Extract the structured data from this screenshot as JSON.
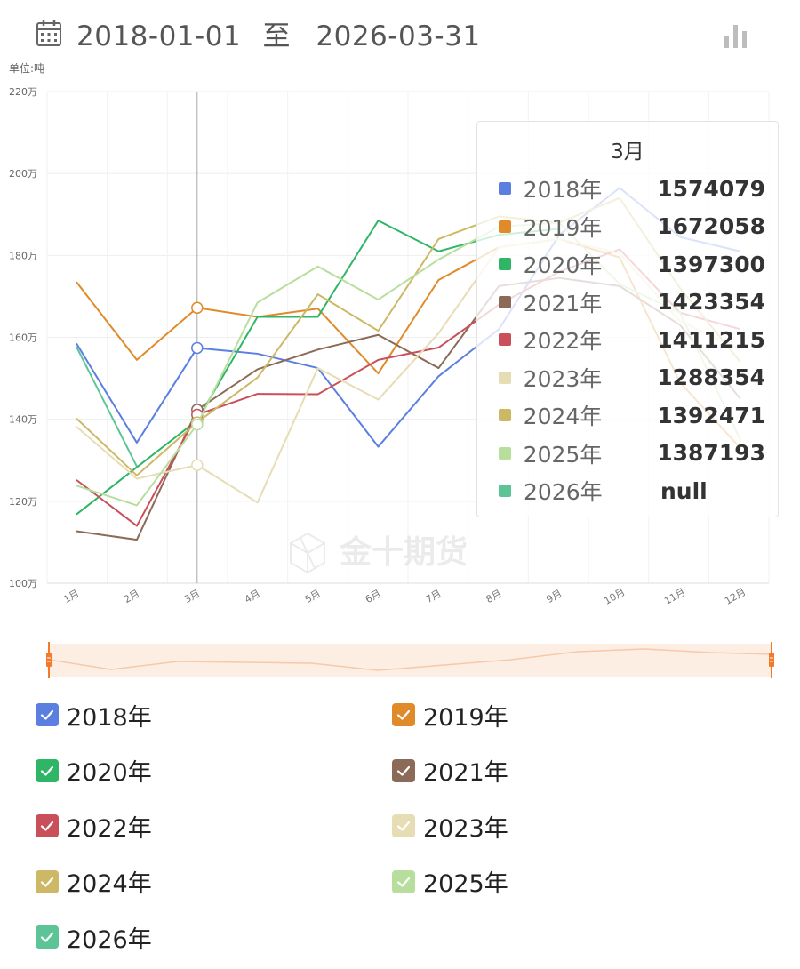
{
  "header": {
    "start_date": "2018-01-01",
    "separator": "至",
    "end_date": "2026-03-31"
  },
  "unit_label": "单位:吨",
  "chart_data": {
    "type": "line",
    "categories": [
      "1月",
      "2月",
      "3月",
      "4月",
      "5月",
      "6月",
      "7月",
      "8月",
      "9月",
      "10月",
      "11月",
      "12月"
    ],
    "y_tick_labels": [
      "100万",
      "120万",
      "140万",
      "160万",
      "180万",
      "200万",
      "220万"
    ],
    "ylim": [
      1000000,
      2200000
    ],
    "grid": true,
    "watermark": "金十期货",
    "series": [
      {
        "name": "2018年",
        "color": "#5b7fe0",
        "values": [
          1585000,
          1343000,
          1574079,
          1560000,
          1525000,
          1333000,
          1505000,
          1620000,
          1850000,
          1965000,
          1845000,
          1810000
        ]
      },
      {
        "name": "2019年",
        "color": "#e08a2a",
        "values": [
          1735000,
          1545000,
          1672058,
          1650000,
          1670000,
          1512000,
          1740000,
          1820000,
          1840000,
          1795000,
          1490000,
          1330000
        ]
      },
      {
        "name": "2020年",
        "color": "#2fb566",
        "values": [
          1168000,
          1283000,
          1397300,
          1650000,
          1650000,
          1885000,
          1810000,
          1850000,
          1865000,
          null,
          null,
          null
        ]
      },
      {
        "name": "2021年",
        "color": "#8c6a58",
        "values": [
          1127000,
          1106000,
          1423354,
          1522000,
          1570000,
          1606000,
          1525000,
          1725000,
          1745000,
          1725000,
          1630000,
          1450000
        ]
      },
      {
        "name": "2022年",
        "color": "#c9505a",
        "values": [
          1252000,
          1140000,
          1411215,
          1462000,
          1461000,
          1545000,
          1575000,
          1680000,
          1760000,
          1815000,
          1660000,
          1620000
        ]
      },
      {
        "name": "2023年",
        "color": "#e7ddb5",
        "values": [
          1382000,
          1255000,
          1288354,
          1197000,
          1525000,
          1448000,
          1610000,
          1820000,
          1840000,
          1805000,
          1640000,
          1570000
        ]
      },
      {
        "name": "2024年",
        "color": "#cdb866",
        "values": [
          1402000,
          1263000,
          1392471,
          1502000,
          1705000,
          1616000,
          1840000,
          1895000,
          1880000,
          1940000,
          1720000,
          1540000
        ]
      },
      {
        "name": "2025年",
        "color": "#b8de9e",
        "values": [
          1238000,
          1190000,
          1387193,
          1685000,
          1773000,
          1692000,
          1790000,
          1870000,
          1880000,
          1730000,
          1660000,
          1350000
        ]
      },
      {
        "name": "2026年",
        "color": "#5cc497",
        "values": [
          1577000,
          1285000,
          null,
          null,
          null,
          null,
          null,
          null,
          null,
          null,
          null,
          null
        ]
      }
    ]
  },
  "tooltip": {
    "title": "3月",
    "rows": [
      {
        "name": "2018年",
        "value": "1574079",
        "color": "#5b7fe0"
      },
      {
        "name": "2019年",
        "value": "1672058",
        "color": "#e08a2a"
      },
      {
        "name": "2020年",
        "value": "1397300",
        "color": "#2fb566"
      },
      {
        "name": "2021年",
        "value": "1423354",
        "color": "#8c6a58"
      },
      {
        "name": "2022年",
        "value": "1411215",
        "color": "#c9505a"
      },
      {
        "name": "2023年",
        "value": "1288354",
        "color": "#e7ddb5"
      },
      {
        "name": "2024年",
        "value": "1392471",
        "color": "#cdb866"
      },
      {
        "name": "2025年",
        "value": "1387193",
        "color": "#b8de9e"
      },
      {
        "name": "2026年",
        "value": "null",
        "color": "#5cc497"
      }
    ]
  },
  "legend": [
    {
      "name": "2018年",
      "color": "#5b7fe0",
      "checked": true
    },
    {
      "name": "2019年",
      "color": "#e08a2a",
      "checked": true
    },
    {
      "name": "2020年",
      "color": "#2fb566",
      "checked": true
    },
    {
      "name": "2021年",
      "color": "#8c6a58",
      "checked": true
    },
    {
      "name": "2022年",
      "color": "#c9505a",
      "checked": true
    },
    {
      "name": "2023年",
      "color": "#e7ddb5",
      "checked": true
    },
    {
      "name": "2024年",
      "color": "#cdb866",
      "checked": true
    },
    {
      "name": "2025年",
      "color": "#b8de9e",
      "checked": true
    },
    {
      "name": "2026年",
      "color": "#5cc497",
      "checked": true
    }
  ],
  "icons": {
    "calendar": "calendar-icon",
    "chart_toggle": "bar-chart-icon",
    "watermark_logo": "jin10-logo-icon",
    "slider_handle": "drag-handle-icon",
    "legend_check": "check-icon"
  },
  "slider": {
    "accent": "#f27a2a",
    "fill": "#fdeee4"
  }
}
